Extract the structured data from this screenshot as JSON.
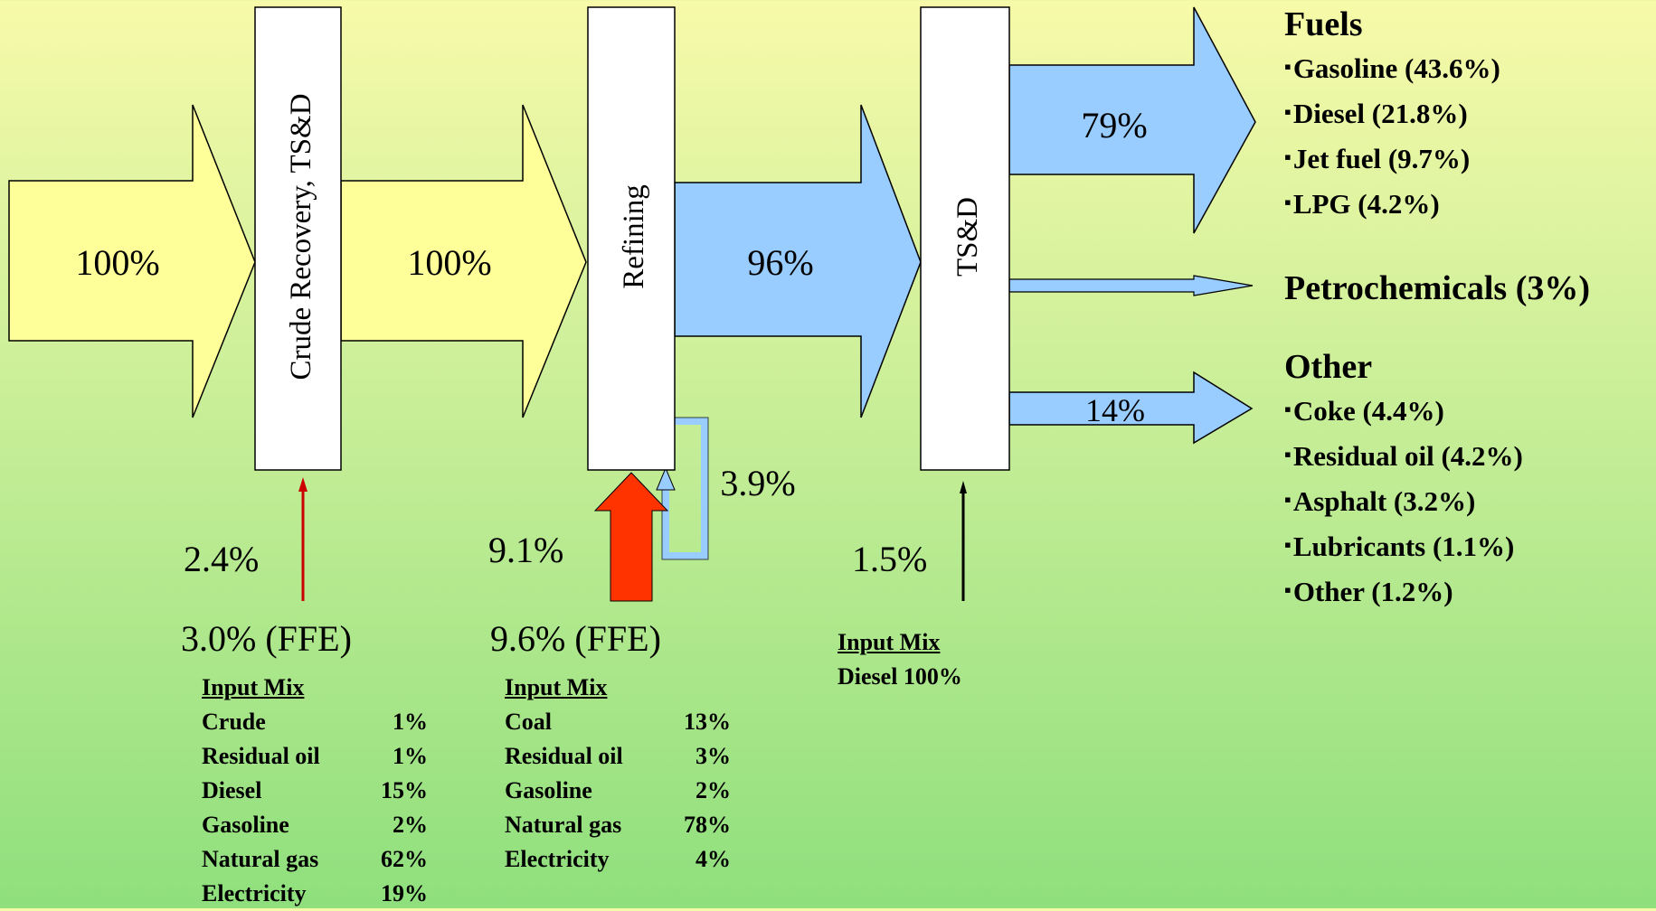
{
  "stages": {
    "crude_recovery": "Crude Recovery, TS&D",
    "refining": "Refining",
    "tsd": "TS&D"
  },
  "flows": {
    "input_crude": "100%",
    "crude_to_refining": "100%",
    "refined_products": "96%",
    "recycle": "3.9%",
    "fuels": "79%",
    "other": "14%"
  },
  "energy_inputs": {
    "crude_recovery": {
      "total": "2.4%",
      "ffe": "3.0% (FFE)"
    },
    "refining": {
      "total": "9.1%",
      "ffe": "9.6% (FFE)"
    },
    "tsd": {
      "total": "1.5%"
    }
  },
  "input_mix": {
    "crude_recovery": {
      "title": "Input Mix",
      "rows": [
        [
          "Crude",
          "1%"
        ],
        [
          "Residual oil",
          "1%"
        ],
        [
          "Diesel",
          "15%"
        ],
        [
          "Gasoline",
          "2%"
        ],
        [
          "Natural gas",
          "62%"
        ],
        [
          "Electricity",
          "19%"
        ]
      ]
    },
    "refining": {
      "title": "Input Mix",
      "rows": [
        [
          "Coal",
          "13%"
        ],
        [
          "Residual oil",
          "3%"
        ],
        [
          "Gasoline",
          "2%"
        ],
        [
          "Natural gas",
          "78%"
        ],
        [
          "Electricity",
          "4%"
        ]
      ]
    },
    "tsd": {
      "title": "Input Mix",
      "rows": [
        [
          "Diesel 100%"
        ]
      ]
    }
  },
  "outputs": {
    "fuels": {
      "title": "Fuels",
      "items": [
        "Gasoline (43.6%)",
        "Diesel (21.8%)",
        "Jet fuel (9.7%)",
        "LPG (4.2%)"
      ]
    },
    "petrochemicals": "Petrochemicals (3%)",
    "other": {
      "title": "Other",
      "items": [
        "Coke (4.4%)",
        "Residual oil (4.2%)",
        "Asphalt (3.2%)",
        "Lubricants (1.1%)",
        "Other (1.2%)"
      ]
    }
  },
  "colors": {
    "yellow_arrow": "#ffff99",
    "blue_arrow": "#99ccff",
    "energy_arrow_red": "#ff3300",
    "thin_arrow_red": "#cc0000"
  }
}
